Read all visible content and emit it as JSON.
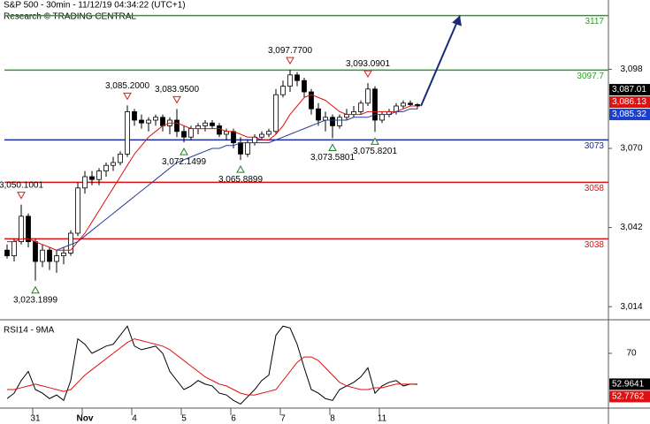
{
  "chart_data": [
    {
      "type": "candlestick",
      "title": "S&P 500 - 30min - 11/12/19 04:34:22 (UTC+1)",
      "subtitle": "Research © TRADING CENTRAL",
      "candles": [
        [
          3034,
          3036,
          3031,
          3032
        ],
        [
          3032,
          3038,
          3030,
          3037
        ],
        [
          3037,
          3050.1001,
          3036,
          3046
        ],
        [
          3046,
          3047,
          3035,
          3037
        ],
        [
          3037,
          3038,
          3023.1899,
          3030
        ],
        [
          3030,
          3036,
          3028,
          3034
        ],
        [
          3034,
          3035,
          3027,
          3030
        ],
        [
          3030,
          3034,
          3026,
          3032
        ],
        [
          3032,
          3035,
          3029,
          3033
        ],
        [
          3033,
          3041,
          3032,
          3040
        ],
        [
          3040,
          3058,
          3039,
          3056
        ],
        [
          3056,
          3062,
          3054,
          3060
        ],
        [
          3060,
          3062,
          3057,
          3059
        ],
        [
          3059,
          3063,
          3057,
          3062
        ],
        [
          3062,
          3065,
          3060,
          3064
        ],
        [
          3064,
          3067,
          3062,
          3065
        ],
        [
          3065,
          3069,
          3064,
          3068
        ],
        [
          3068,
          3085.2,
          3067,
          3083
        ],
        [
          3083,
          3084,
          3078,
          3080
        ],
        [
          3080,
          3082,
          3077,
          3079
        ],
        [
          3079,
          3081,
          3076,
          3080
        ],
        [
          3080,
          3082,
          3078,
          3081
        ],
        [
          3081,
          3082,
          3076,
          3078
        ],
        [
          3078,
          3081,
          3075,
          3080
        ],
        [
          3080,
          3083.95,
          3074,
          3076
        ],
        [
          3076,
          3078,
          3072.1499,
          3074
        ],
        [
          3074,
          3078,
          3073,
          3077
        ],
        [
          3077,
          3079,
          3075,
          3078
        ],
        [
          3078,
          3080,
          3076,
          3079
        ],
        [
          3079,
          3080,
          3077,
          3078
        ],
        [
          3078,
          3079,
          3074,
          3075
        ],
        [
          3075,
          3077,
          3073,
          3076
        ],
        [
          3076,
          3077,
          3070,
          3072
        ],
        [
          3072,
          3074,
          3065.8899,
          3068
        ],
        [
          3068,
          3073,
          3067,
          3072
        ],
        [
          3072,
          3075,
          3071,
          3074
        ],
        [
          3074,
          3076,
          3073,
          3075
        ],
        [
          3075,
          3077,
          3074,
          3076
        ],
        [
          3076,
          3091,
          3075,
          3089
        ],
        [
          3089,
          3094,
          3088,
          3092
        ],
        [
          3092,
          3097.77,
          3090,
          3096
        ],
        [
          3096,
          3097,
          3092,
          3094
        ],
        [
          3094,
          3095,
          3088,
          3090
        ],
        [
          3090,
          3091,
          3082,
          3084
        ],
        [
          3084,
          3086,
          3078,
          3080
        ],
        [
          3080,
          3083,
          3076,
          3081
        ],
        [
          3081,
          3082,
          3073.5801,
          3078
        ],
        [
          3078,
          3082,
          3077,
          3081
        ],
        [
          3081,
          3084,
          3080,
          3082
        ],
        [
          3082,
          3085,
          3081,
          3083
        ],
        [
          3083,
          3087,
          3082,
          3086
        ],
        [
          3086,
          3093.0901,
          3085,
          3091
        ],
        [
          3091,
          3092,
          3075.8201,
          3080
        ],
        [
          3080,
          3083,
          3079,
          3082
        ],
        [
          3082,
          3084,
          3081,
          3083
        ],
        [
          3083,
          3086,
          3082,
          3085
        ],
        [
          3085,
          3087,
          3084,
          3086
        ],
        [
          3086,
          3087,
          3085,
          3085.5
        ],
        [
          3085.5,
          3086,
          3084,
          3085
        ]
      ],
      "series": [
        {
          "color": "#e01010",
          "values": [
            3037,
            3037,
            3038,
            3038,
            3037,
            3036,
            3035,
            3034,
            3034,
            3034,
            3037,
            3040,
            3044,
            3048,
            3052,
            3056,
            3060,
            3064,
            3068,
            3071,
            3074,
            3076,
            3078,
            3079,
            3079,
            3078,
            3077,
            3077,
            3077,
            3077,
            3077,
            3076,
            3076,
            3075,
            3074,
            3074,
            3073,
            3073,
            3075,
            3078,
            3082,
            3085,
            3088,
            3089,
            3088,
            3087,
            3085,
            3083,
            3082,
            3082,
            3082,
            3083,
            3083,
            3083,
            3083,
            3083,
            3084,
            3085,
            3085
          ]
        },
        {
          "color": "#2a3a9a",
          "values": [
            null,
            null,
            null,
            null,
            null,
            null,
            null,
            3034,
            3035,
            3036,
            3037,
            3039,
            3041,
            3043,
            3045,
            3047,
            3049,
            3051,
            3053,
            3055,
            3057,
            3059,
            3061,
            3063,
            3065,
            3066,
            3067,
            3068,
            3069,
            3070,
            3070,
            3071,
            3071,
            3072,
            3072,
            3072,
            3072,
            3072,
            3073,
            3074,
            3075,
            3076,
            3077,
            3078,
            3079,
            3080,
            3080,
            3080,
            3080,
            3081,
            3081,
            3081,
            3082,
            3082,
            3082,
            3083,
            3083,
            3084,
            3084
          ]
        }
      ],
      "ylim": [
        3009.5,
        3122.5
      ],
      "yticks": [
        {
          "value": 3014,
          "label": "3,014"
        },
        {
          "value": 3042,
          "label": "3,042"
        },
        {
          "value": 3070,
          "label": "3,070"
        },
        {
          "value": 3098,
          "label": "3,098"
        }
      ],
      "levels": [
        {
          "value": 3117,
          "color": "#2e9a2e"
        },
        {
          "value": 3097.7,
          "color": "#2e9a2e"
        },
        {
          "value": 3073,
          "color": "#1a2aa0"
        },
        {
          "value": 3058,
          "color": "#e01010"
        },
        {
          "value": 3038,
          "color": "#e01010"
        }
      ],
      "pivots": [
        {
          "value": 3050.1001,
          "label": "3,050.1001",
          "dir": "high"
        },
        {
          "value": 3023.1899,
          "label": "3,023.1899",
          "dir": "low"
        },
        {
          "value": 3085.2,
          "label": "3,085.2000",
          "dir": "high"
        },
        {
          "value": 3083.95,
          "label": "3,083.9500",
          "dir": "high"
        },
        {
          "value": 3072.1499,
          "label": "3,072.1499",
          "dir": "low"
        },
        {
          "value": 3065.8899,
          "label": "3,065.8899",
          "dir": "low"
        },
        {
          "value": 3097.77,
          "label": "3,097.7700",
          "dir": "high"
        },
        {
          "value": 3073.5801,
          "label": "3,073.5801",
          "dir": "low"
        },
        {
          "value": 3093.0901,
          "label": "3,093.0901",
          "dir": "high"
        },
        {
          "value": 3075.8201,
          "label": "3,075.8201",
          "dir": "low"
        }
      ],
      "price_labels": [
        {
          "value": 3087.01,
          "label": "3,087.01",
          "color": "#000000"
        },
        {
          "value": 3086.13,
          "label": "3,086.13",
          "color": "#e01010"
        },
        {
          "value": 3085.32,
          "label": "3,085.32",
          "color": "#1a3fd0"
        }
      ]
    },
    {
      "type": "line",
      "title": "RSI14 - 9MA",
      "categories": [
        null,
        null,
        null,
        null,
        "31",
        null,
        null,
        null,
        null,
        null,
        null,
        "Nov",
        null,
        null,
        null,
        null,
        null,
        null,
        "4",
        null,
        null,
        null,
        null,
        null,
        null,
        "5",
        null,
        null,
        null,
        null,
        null,
        null,
        "6",
        null,
        null,
        null,
        null,
        null,
        null,
        "7",
        null,
        null,
        null,
        null,
        null,
        null,
        "8",
        null,
        null,
        null,
        null,
        null,
        null,
        "11",
        null,
        null,
        null,
        null,
        null
      ],
      "series": [
        {
          "color": "#000000",
          "values": [
            45,
            48,
            55,
            60,
            50,
            48,
            45,
            47,
            44,
            55,
            78,
            75,
            70,
            72,
            74,
            75,
            80,
            85,
            74,
            72,
            73,
            74,
            70,
            60,
            55,
            50,
            52,
            55,
            53,
            52,
            48,
            47,
            44,
            42,
            46,
            50,
            55,
            58,
            80,
            85,
            84,
            75,
            62,
            50,
            48,
            45,
            44,
            50,
            52,
            54,
            57,
            62,
            48,
            52,
            54,
            55,
            52,
            53,
            52.9641
          ]
        },
        {
          "color": "#e01010",
          "values": [
            50,
            50,
            51,
            52,
            53,
            52,
            51,
            50,
            49,
            50,
            54,
            58,
            61,
            64,
            67,
            70,
            73,
            76,
            78,
            77,
            76,
            75,
            74,
            72,
            69,
            66,
            63,
            60,
            57,
            55,
            53,
            52,
            50,
            48,
            47,
            47,
            48,
            49,
            50,
            55,
            60,
            65,
            68,
            68,
            66,
            62,
            58,
            54,
            52,
            51,
            50,
            50,
            51,
            51,
            52,
            53,
            53,
            53,
            52.7762
          ]
        }
      ],
      "ylim": [
        40,
        86
      ],
      "yticks": [
        70
      ],
      "price_labels": [
        {
          "value": 52.9641,
          "color": "#000000"
        },
        {
          "value": 52.7762,
          "color": "#e01010"
        }
      ]
    }
  ]
}
